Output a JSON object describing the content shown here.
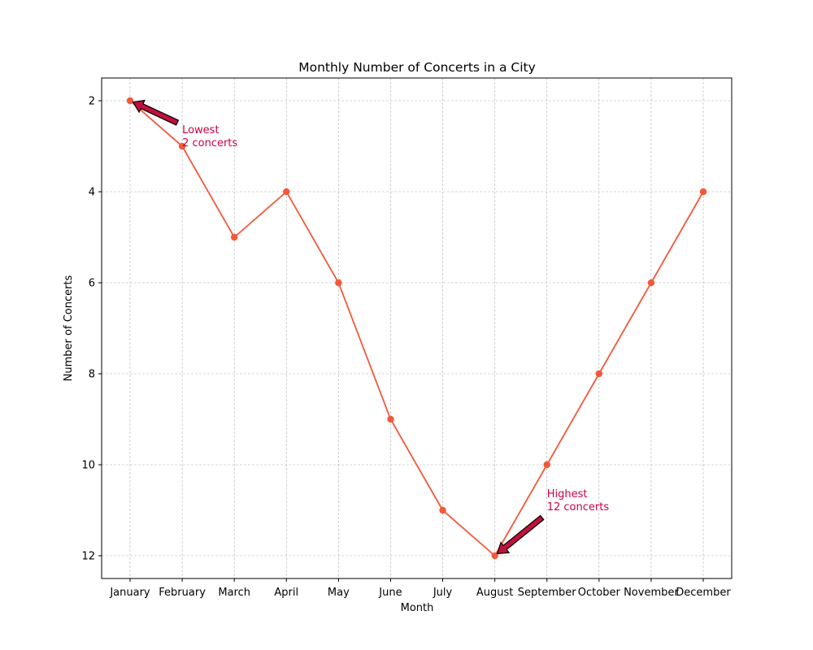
{
  "chart_data": {
    "type": "line",
    "title": "Monthly Number of Concerts in a City",
    "xlabel": "Month",
    "ylabel": "Number of Concerts",
    "categories": [
      "January",
      "February",
      "March",
      "April",
      "May",
      "June",
      "July",
      "August",
      "September",
      "October",
      "November",
      "December"
    ],
    "series": [
      {
        "values": [
          2,
          3,
          5,
          4,
          6,
          9,
          11,
          12,
          10,
          8,
          6,
          4
        ]
      }
    ],
    "ylim": [
      1.5,
      12.5
    ],
    "y_inverted": true,
    "yticks": [
      "2",
      "4",
      "6",
      "8",
      "10",
      "12"
    ],
    "grid": true,
    "line_color": "#f4583a",
    "annotations": [
      {
        "line1": "Lowest",
        "line2": "2 concerts",
        "color": "#cc0044",
        "target_category": "January",
        "target_value": 2
      },
      {
        "line1": "Highest",
        "line2": "12 concerts",
        "color": "#cc0044",
        "target_category": "August",
        "target_value": 12
      }
    ]
  }
}
